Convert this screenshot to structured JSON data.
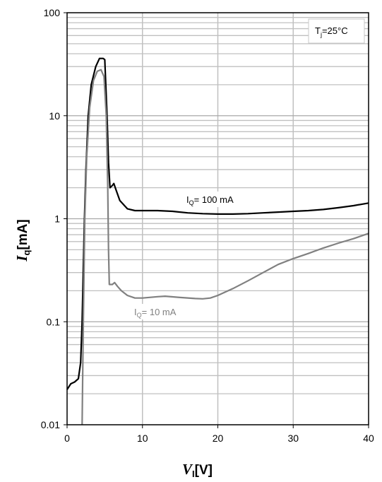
{
  "chart_data": {
    "type": "line",
    "xlabel": {
      "main": "V",
      "sub": "I",
      "unit": "[V]"
    },
    "ylabel": {
      "main": "I",
      "sub": "q",
      "unit": "[mA]"
    },
    "xlim": [
      0,
      40
    ],
    "ylim": [
      0.01,
      100
    ],
    "yscale": "log",
    "grid": true,
    "x_ticks": [
      "0",
      "10",
      "20",
      "30",
      "40"
    ],
    "y_ticks": [
      "0.01",
      "0.1",
      "1",
      "10",
      "100"
    ],
    "annotations": [
      {
        "text": "T",
        "sub": "j",
        "rest": "=25°C"
      },
      {
        "text": "I",
        "sub": "Q",
        "rest": "= 100 mA"
      },
      {
        "text": "I",
        "sub": "Q",
        "rest": "= 10 mA"
      }
    ],
    "series": [
      {
        "label_ref": "IQ = 100 mA",
        "color": "#000000",
        "points": [
          [
            0,
            0.022
          ],
          [
            0.5,
            0.025
          ],
          [
            1,
            0.026
          ],
          [
            1.5,
            0.028
          ],
          [
            1.8,
            0.04
          ],
          [
            2.0,
            0.1
          ],
          [
            2.3,
            1
          ],
          [
            2.5,
            3
          ],
          [
            2.8,
            10
          ],
          [
            3.2,
            20
          ],
          [
            3.8,
            30
          ],
          [
            4.3,
            36
          ],
          [
            4.8,
            36
          ],
          [
            5.0,
            35
          ],
          [
            5.3,
            10
          ],
          [
            5.5,
            3.5
          ],
          [
            5.7,
            2.0
          ],
          [
            6.0,
            2.1
          ],
          [
            6.2,
            2.2
          ],
          [
            6.5,
            1.9
          ],
          [
            7.0,
            1.5
          ],
          [
            8.0,
            1.25
          ],
          [
            9.0,
            1.2
          ],
          [
            10,
            1.2
          ],
          [
            12,
            1.2
          ],
          [
            14,
            1.18
          ],
          [
            16,
            1.14
          ],
          [
            18,
            1.12
          ],
          [
            20,
            1.11
          ],
          [
            22,
            1.11
          ],
          [
            24,
            1.12
          ],
          [
            26,
            1.14
          ],
          [
            28,
            1.16
          ],
          [
            30,
            1.18
          ],
          [
            32,
            1.2
          ],
          [
            34,
            1.23
          ],
          [
            36,
            1.28
          ],
          [
            38,
            1.34
          ],
          [
            40,
            1.42
          ]
        ]
      },
      {
        "label_ref": "IQ = 10 mA",
        "color": "#808080",
        "points": [
          [
            2.0,
            0.01
          ],
          [
            2.15,
            0.1
          ],
          [
            2.35,
            1
          ],
          [
            2.6,
            4
          ],
          [
            3.0,
            12
          ],
          [
            3.5,
            22
          ],
          [
            4.0,
            27
          ],
          [
            4.5,
            28
          ],
          [
            4.9,
            24
          ],
          [
            5.2,
            10
          ],
          [
            5.4,
            2
          ],
          [
            5.5,
            0.5
          ],
          [
            5.6,
            0.23
          ],
          [
            6.0,
            0.23
          ],
          [
            6.3,
            0.24
          ],
          [
            6.7,
            0.22
          ],
          [
            7.2,
            0.2
          ],
          [
            8,
            0.18
          ],
          [
            9,
            0.17
          ],
          [
            10,
            0.17
          ],
          [
            12,
            0.175
          ],
          [
            13,
            0.177
          ],
          [
            15,
            0.172
          ],
          [
            17,
            0.168
          ],
          [
            18,
            0.167
          ],
          [
            19,
            0.17
          ],
          [
            20,
            0.18
          ],
          [
            22,
            0.21
          ],
          [
            24,
            0.25
          ],
          [
            26,
            0.3
          ],
          [
            28,
            0.36
          ],
          [
            30,
            0.41
          ],
          [
            32,
            0.46
          ],
          [
            34,
            0.52
          ],
          [
            36,
            0.58
          ],
          [
            38,
            0.64
          ],
          [
            40,
            0.72
          ]
        ]
      }
    ]
  }
}
